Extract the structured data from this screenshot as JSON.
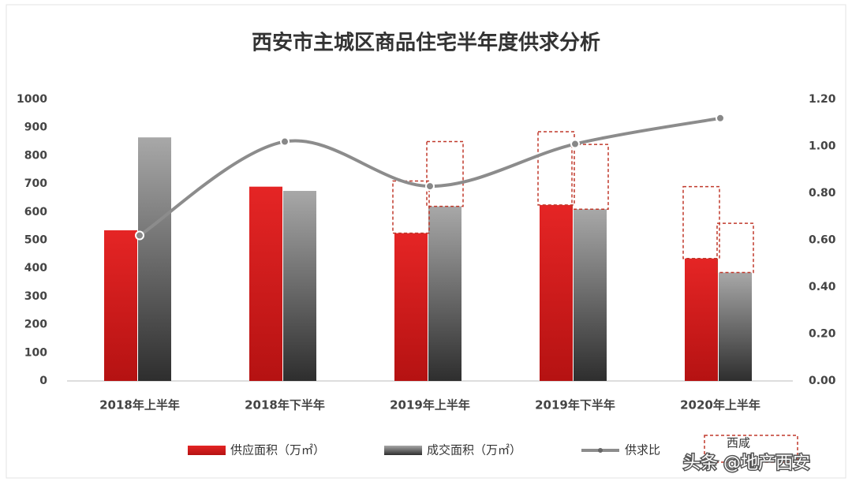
{
  "chart_data": {
    "type": "bar-line",
    "title": "西安市主城区商品住宅半年度供求分析",
    "categories": [
      "2018年上半年",
      "2018年下半年",
      "2019年上半年",
      "2019年下半年",
      "2020年上半年"
    ],
    "series": [
      {
        "name": "供应面积（万㎡）",
        "color": "#d41e1e",
        "values": [
          535,
          690,
          525,
          625,
          435
        ]
      },
      {
        "name": "成交面积（万㎡）",
        "color": "#555555",
        "values": [
          865,
          675,
          620,
          610,
          385
        ]
      },
      {
        "name": "供求比",
        "color": "#8c8c8c",
        "axis": "y2",
        "values": [
          0.62,
          1.02,
          0.83,
          1.01,
          1.12
        ]
      },
      {
        "name": "西咸",
        "color": "#c0392b",
        "dashed": true,
        "stack_on": 0,
        "values": [
          null,
          null,
          185,
          260,
          255
        ]
      },
      {
        "color": "#c0392b",
        "dashed": true,
        "stack_on": 1,
        "values": [
          null,
          null,
          230,
          230,
          175
        ]
      }
    ],
    "ylim": [
      0,
      1000
    ],
    "yticks": [
      0,
      100,
      200,
      300,
      400,
      500,
      600,
      700,
      800,
      900,
      1000
    ],
    "y2lim": [
      0,
      1.2
    ],
    "y2ticks": [
      {
        "value": 0,
        "label": "0.00"
      },
      {
        "value": 0.2,
        "label": "0.20"
      },
      {
        "value": 0.4,
        "label": "0.40"
      },
      {
        "value": 0.6,
        "label": "0.60"
      },
      {
        "value": 0.8,
        "label": "0.80"
      },
      {
        "value": 1.0,
        "label": "1.00"
      },
      {
        "value": 1.2,
        "label": "1.20"
      }
    ],
    "grid": false,
    "watermark": "头条 @地产西安"
  }
}
